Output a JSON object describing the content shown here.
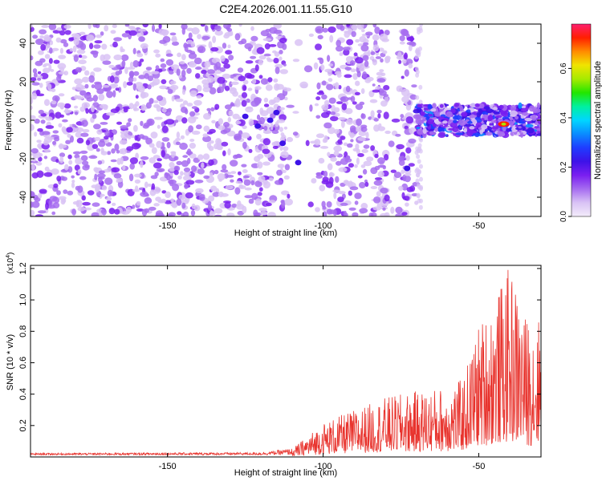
{
  "title": "C2E4.2026.001.11.55.G10",
  "chart_data": [
    {
      "type": "heatmap",
      "name": "spectrogram",
      "xlabel": "Height of straight line (km)",
      "ylabel": "Frequency (Hz)",
      "xlim": [
        -194,
        -30
      ],
      "ylim": [
        -50,
        50
      ],
      "xticks": [
        -150,
        -100,
        -50
      ],
      "yticks": [
        -40,
        -20,
        0,
        20,
        40
      ],
      "colorbar": {
        "label": "Normalized spectral amplitude",
        "range": [
          0.0,
          0.78
        ],
        "ticks": [
          0.0,
          0.2,
          0.4,
          0.6
        ],
        "tick_labels": [
          "0.0",
          "0.2",
          "0.4",
          "0.6"
        ],
        "colormap": [
          "#f3ecfa",
          "#d9c3f5",
          "#a66cf0",
          "#7a1ff0",
          "#3d12e8",
          "#1f3cff",
          "#0a8cff",
          "#00d6ff",
          "#00f0a0",
          "#22e600",
          "#a6ea00",
          "#f0e400",
          "#ff8c00",
          "#ff1f00",
          "#ff1f6e"
        ]
      },
      "features": {
        "noise_region_x": [
          -194,
          -70
        ],
        "gaps_x": [
          [
            -112,
            -103
          ],
          [
            -79,
            -76
          ]
        ],
        "signal_band_hz": [
          -8,
          8
        ],
        "peak_x": -42,
        "peak_freq_hz": -2,
        "peak_amplitude": 0.75
      }
    },
    {
      "type": "line",
      "name": "snr",
      "xlabel": "Height of straight line (km)",
      "ylabel": "SNR (10 * v/v)",
      "y_multiplier_label": "(x10",
      "y_multiplier_exp": "4",
      "y_multiplier_close": ")",
      "xlim": [
        -194,
        -30
      ],
      "ylim": [
        0,
        1.22
      ],
      "xticks": [
        -150,
        -100,
        -50
      ],
      "yticks": [
        0.2,
        0.4,
        0.6,
        0.8,
        1.0,
        1.2
      ],
      "ytick_labels": [
        "0.2",
        "0.4",
        "0.6",
        "0.8",
        "1.0",
        "1.2"
      ],
      "color": "#e8332d",
      "envelope": [
        {
          "x": -194,
          "y": 0.02
        },
        {
          "x": -120,
          "y": 0.025
        },
        {
          "x": -110,
          "y": 0.05
        },
        {
          "x": -100,
          "y": 0.22
        },
        {
          "x": -90,
          "y": 0.3
        },
        {
          "x": -80,
          "y": 0.38
        },
        {
          "x": -70,
          "y": 0.42
        },
        {
          "x": -60,
          "y": 0.45
        },
        {
          "x": -55,
          "y": 0.5
        },
        {
          "x": -50,
          "y": 0.85
        },
        {
          "x": -45,
          "y": 1.0
        },
        {
          "x": -40,
          "y": 1.22
        },
        {
          "x": -35,
          "y": 0.9
        },
        {
          "x": -30,
          "y": 0.9
        }
      ]
    }
  ]
}
